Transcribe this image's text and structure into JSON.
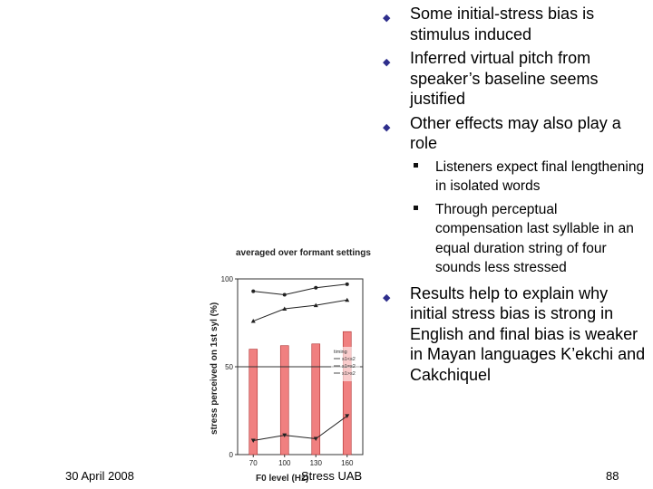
{
  "slide": {
    "bullets": [
      {
        "text": "Some initial-stress bias is stimulus induced"
      },
      {
        "text": "Inferred virtual pitch from speaker’s baseline seems justified"
      },
      {
        "text": "Other effects may also play a role",
        "sub": [
          "Listeners expect final lengthening in isolated words",
          "Through perceptual compensation last syllable in an equal duration string of four sounds less stressed"
        ]
      },
      {
        "text": "Results help to explain why initial stress bias is strong in English and final bias is weaker in Mayan languages K’ekchi and Cakchiquel"
      }
    ],
    "footer": {
      "date": "30 April 2008",
      "center": "Stress UAB",
      "page": "88"
    }
  },
  "colors": {
    "bar": "#f08080",
    "bar_stroke": "#b03030",
    "line": "#222222",
    "bullet": "#2e2e8c"
  },
  "chart_data": {
    "type": "bar",
    "title": "averaged over formant settings",
    "xlabel": "F0 level (Hz)",
    "ylabel": "stress perceived on 1st syl (%)",
    "categories": [
      "70",
      "100",
      "130",
      "160"
    ],
    "ylim": [
      0,
      100
    ],
    "yticks": [
      "0",
      "50",
      "100"
    ],
    "reference_line": 50,
    "bars": [
      60,
      62,
      63,
      70
    ],
    "series": [
      {
        "name": "",
        "values": [
          93,
          91,
          95,
          97
        ]
      },
      {
        "name": "",
        "values": [
          76,
          83,
          85,
          88
        ]
      },
      {
        "name": "",
        "values": [
          8,
          11,
          9,
          22
        ]
      }
    ],
    "legend": {
      "title": "timing",
      "entries": [
        "s1<s2",
        "s1=s2",
        "s1>s2"
      ],
      "placement": "right"
    }
  }
}
